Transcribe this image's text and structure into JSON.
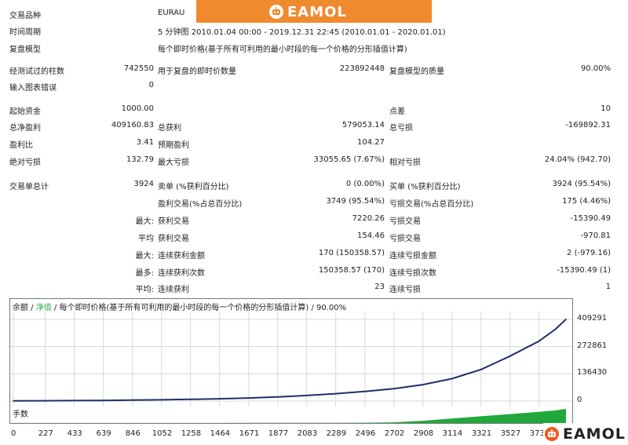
{
  "banner": {
    "brand": "EAMOL"
  },
  "watermark": {
    "brand": "EAMOL"
  },
  "info": {
    "symbol_label": "交易品种",
    "symbol_value": "EURAU",
    "period_label": "时间周期",
    "period_value": "5 分钟图 2010.01.04 00:00 - 2019.12.31 22:45 (2010.01.01 - 2020.01.01)",
    "model_label": "复盘模型",
    "model_value": "每个即时价格(基于所有可利用的最小时段的每一个价格的分形插值计算)"
  },
  "stats": {
    "bars_label": "经测试过的柱数",
    "bars_value": "742550",
    "ticks_label": "用于复盘的即时价数量",
    "ticks_value": "223892448",
    "quality_label": "复盘模型的质量",
    "quality_value": "90.00%",
    "errors_label": "输入图表错误",
    "errors_value": "0",
    "deposit_label": "起始资金",
    "deposit_value": "1000.00",
    "spread_label": "点差",
    "spread_value": "10",
    "net_label": "总净盈利",
    "net_value": "409160.83",
    "gross_profit_label": "总获利",
    "gross_profit_value": "579053.14",
    "gross_loss_label": "总亏损",
    "gross_loss_value": "-169892.31",
    "pf_label": "盈利比",
    "pf_value": "3.41",
    "exp_label": "预期盈利",
    "exp_value": "104.27",
    "abs_dd_label": "绝对亏损",
    "abs_dd_value": "132.79",
    "max_dd_label": "最大亏损",
    "max_dd_value": "33055.65 (7.67%)",
    "rel_dd_label": "相对亏损",
    "rel_dd_value": "24.04% (942.70)",
    "total_label": "交易单总计",
    "total_value": "3924",
    "short_label": "卖单 (%获利百分比)",
    "short_value": "0 (0.00%)",
    "long_label": "买单 (%获利百分比)",
    "long_value": "3924 (95.54%)",
    "win_label": "盈利交易(%占总百分比)",
    "win_value": "3749 (95.54%)",
    "loss_label": "亏损交易(%占总百分比)",
    "loss_value": "175 (4.46%)",
    "max_prefix": "最大:",
    "max_win_label": "获利交易",
    "max_win_value": "7220.26",
    "max_loss_label": "亏损交易",
    "max_loss_value": "-15390.49",
    "avg_prefix": "平均",
    "avg_win_label": "获利交易",
    "avg_win_value": "154.46",
    "avg_loss_label": "亏损交易",
    "avg_loss_value": "-970.81",
    "max2_prefix": "最大:",
    "cons_win_amt_label": "连续获利金额",
    "cons_win_amt_value": "170 (150358.57)",
    "cons_loss_amt_label": "连续亏损金额",
    "cons_loss_amt_value": "2 (-979.16)",
    "most_prefix": "最多:",
    "cons_win_cnt_label": "连续获利次数",
    "cons_win_cnt_value": "150358.57 (170)",
    "cons_loss_cnt_label": "连续亏损次数",
    "cons_loss_cnt_value": "-15390.49 (1)",
    "avg2_prefix": "平均:",
    "avg_cons_win_label": "连续获利",
    "avg_cons_win_value": "23",
    "avg_cons_loss_label": "连续亏损",
    "avg_cons_loss_value": "1"
  },
  "chart": {
    "title_balance": "余额",
    "title_sep": " / ",
    "title_equity": "净值",
    "title_rest": " / 每个即时价格(基于所有可利用的最小时段的每一个价格的分形插值计算) / 90.00%",
    "volume_label": "手数",
    "colors": {
      "line": "#1f2f6a",
      "equity": "#2aa84a",
      "volume": "#21a83a",
      "grid": "#d8d8d8"
    }
  },
  "chart_data": {
    "type": "line",
    "x": [
      0,
      227,
      433,
      639,
      846,
      1052,
      1258,
      1464,
      1671,
      1877,
      2083,
      2289,
      2496,
      2702,
      2908,
      3114,
      3321,
      3527,
      3733,
      3850,
      3924
    ],
    "series": [
      {
        "name": "余额",
        "values": [
          1000,
          1500,
          2300,
          3300,
          4600,
          6300,
          8500,
          11500,
          15500,
          21000,
          28000,
          37000,
          48000,
          62000,
          82000,
          112000,
          158000,
          225000,
          300000,
          360000,
          409160.83
        ]
      }
    ],
    "xticks": [
      "0",
      "227",
      "433",
      "639",
      "846",
      "1052",
      "1258",
      "1464",
      "1671",
      "1877",
      "2083",
      "2289",
      "2496",
      "2702",
      "2908",
      "3114",
      "3321",
      "3527",
      "3733"
    ],
    "yticks": [
      "409291",
      "272861",
      "136430",
      "0"
    ],
    "ylim": [
      0,
      440000
    ],
    "volume": [
      0.1,
      0.1,
      0.1,
      0.1,
      0.1,
      0.1,
      0.1,
      0.1,
      0.2,
      0.2,
      0.2,
      0.3,
      0.4,
      1.0,
      3.0,
      6.0,
      9.0,
      12.0,
      15.0,
      17.0,
      19.0
    ]
  }
}
